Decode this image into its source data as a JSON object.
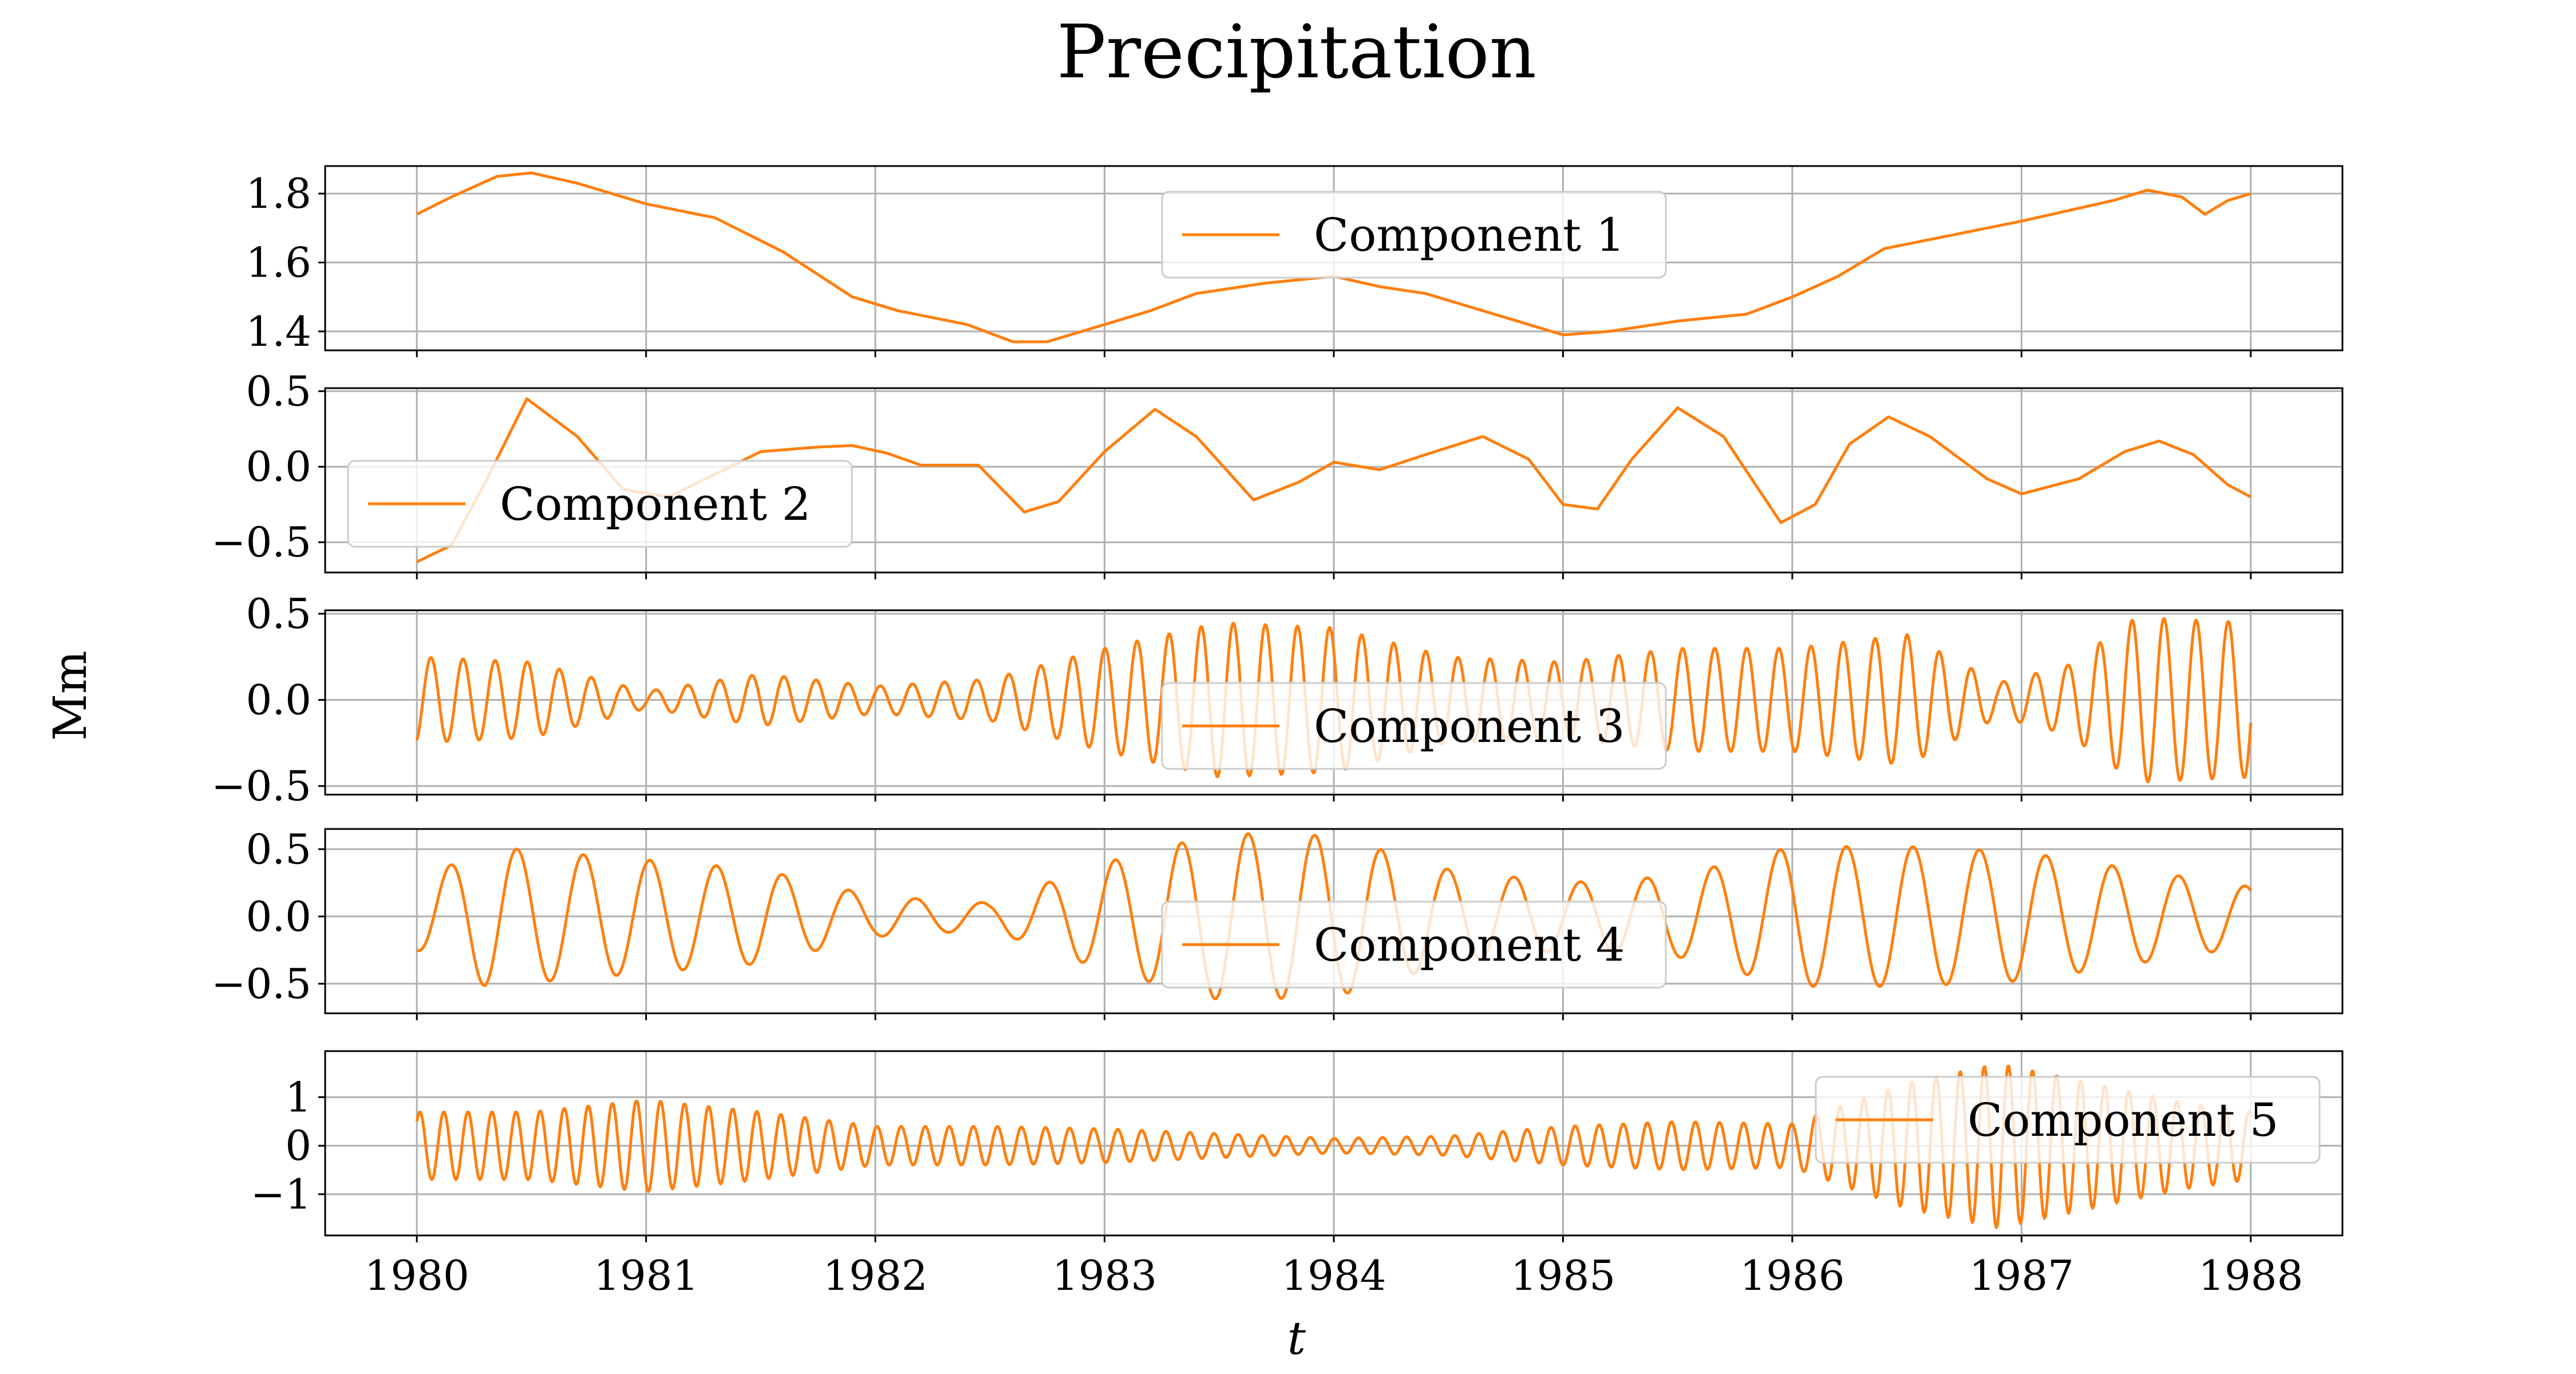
{
  "title": "Precipitation",
  "xlabel": "t",
  "ylabel": "Mm",
  "line_color": "#ff7f0e",
  "grid_color": "#b0b0b0",
  "chart_data": [
    {
      "type": "line",
      "series": [
        {
          "name": "Component 1"
        }
      ],
      "xlim": [
        1979.6,
        1988.4
      ],
      "ylim": [
        1.345,
        1.88
      ],
      "yticks": [
        1.4,
        1.6,
        1.8
      ],
      "ytick_labels": [
        "1.4",
        "1.6",
        "1.8"
      ],
      "legend_position": "upper center",
      "signal": {
        "knots": [
          [
            1980.0,
            1.74
          ],
          [
            1980.15,
            1.79
          ],
          [
            1980.35,
            1.85
          ],
          [
            1980.5,
            1.86
          ],
          [
            1980.7,
            1.83
          ],
          [
            1981.0,
            1.77
          ],
          [
            1981.3,
            1.73
          ],
          [
            1981.6,
            1.63
          ],
          [
            1981.9,
            1.5
          ],
          [
            1982.1,
            1.46
          ],
          [
            1982.4,
            1.42
          ],
          [
            1982.6,
            1.37
          ],
          [
            1982.75,
            1.37
          ],
          [
            1983.0,
            1.42
          ],
          [
            1983.2,
            1.46
          ],
          [
            1983.4,
            1.51
          ],
          [
            1983.7,
            1.54
          ],
          [
            1984.0,
            1.56
          ],
          [
            1984.2,
            1.53
          ],
          [
            1984.4,
            1.51
          ],
          [
            1984.7,
            1.45
          ],
          [
            1985.0,
            1.39
          ],
          [
            1985.2,
            1.4
          ],
          [
            1985.5,
            1.43
          ],
          [
            1985.8,
            1.45
          ],
          [
            1986.0,
            1.5
          ],
          [
            1986.2,
            1.56
          ],
          [
            1986.4,
            1.64
          ],
          [
            1986.7,
            1.68
          ],
          [
            1987.0,
            1.72
          ],
          [
            1987.4,
            1.78
          ],
          [
            1987.55,
            1.81
          ],
          [
            1987.7,
            1.79
          ],
          [
            1987.8,
            1.74
          ],
          [
            1987.9,
            1.78
          ],
          [
            1988.0,
            1.8
          ]
        ],
        "osc_amp": [
          [
            1980.0,
            0.0
          ],
          [
            1988.0,
            0.0
          ]
        ],
        "osc_period": [
          [
            1980.0,
            1.0
          ],
          [
            1988.0,
            1.0
          ]
        ],
        "phase": 0
      }
    },
    {
      "type": "line",
      "series": [
        {
          "name": "Component 2"
        }
      ],
      "xlim": [
        1979.6,
        1988.4
      ],
      "ylim": [
        -0.7,
        0.52
      ],
      "yticks": [
        -0.5,
        0.0,
        0.5
      ],
      "ytick_labels": [
        "−0.5",
        "0.0",
        "0.5"
      ],
      "legend_position": "lower left",
      "signal": {
        "knots": [
          [
            1980.0,
            -0.63
          ],
          [
            1980.15,
            -0.52
          ],
          [
            1980.3,
            -0.1
          ],
          [
            1980.48,
            0.45
          ],
          [
            1980.7,
            0.2
          ],
          [
            1980.9,
            -0.15
          ],
          [
            1981.1,
            -0.2
          ],
          [
            1981.3,
            -0.05
          ],
          [
            1981.5,
            0.1
          ],
          [
            1981.75,
            0.13
          ],
          [
            1981.9,
            0.14
          ],
          [
            1982.05,
            0.09
          ],
          [
            1982.2,
            0.01
          ],
          [
            1982.45,
            0.01
          ],
          [
            1982.65,
            -0.3
          ],
          [
            1982.8,
            -0.23
          ],
          [
            1983.0,
            0.1
          ],
          [
            1983.22,
            0.38
          ],
          [
            1983.4,
            0.2
          ],
          [
            1983.65,
            -0.22
          ],
          [
            1983.85,
            -0.1
          ],
          [
            1984.0,
            0.03
          ],
          [
            1984.2,
            -0.02
          ],
          [
            1984.4,
            0.08
          ],
          [
            1984.65,
            0.2
          ],
          [
            1984.85,
            0.05
          ],
          [
            1985.0,
            -0.25
          ],
          [
            1985.15,
            -0.28
          ],
          [
            1985.3,
            0.05
          ],
          [
            1985.5,
            0.39
          ],
          [
            1985.7,
            0.2
          ],
          [
            1985.95,
            -0.37
          ],
          [
            1986.1,
            -0.25
          ],
          [
            1986.25,
            0.15
          ],
          [
            1986.42,
            0.33
          ],
          [
            1986.6,
            0.2
          ],
          [
            1986.85,
            -0.08
          ],
          [
            1987.0,
            -0.18
          ],
          [
            1987.25,
            -0.08
          ],
          [
            1987.45,
            0.1
          ],
          [
            1987.6,
            0.17
          ],
          [
            1987.75,
            0.08
          ],
          [
            1987.9,
            -0.12
          ],
          [
            1988.0,
            -0.2
          ]
        ],
        "osc_amp": [
          [
            1980.0,
            0.0
          ],
          [
            1988.0,
            0.0
          ]
        ],
        "osc_period": [
          [
            1980.0,
            1.0
          ],
          [
            1988.0,
            1.0
          ]
        ],
        "phase": 0
      }
    },
    {
      "type": "line",
      "series": [
        {
          "name": "Component 3"
        }
      ],
      "xlim": [
        1979.6,
        1988.4
      ],
      "ylim": [
        -0.55,
        0.52
      ],
      "yticks": [
        -0.5,
        0.0,
        0.5
      ],
      "ytick_labels": [
        "−0.5",
        "0.0",
        "0.5"
      ],
      "legend_position": "lower center",
      "signal": {
        "knots": [
          [
            1980.0,
            0.0
          ],
          [
            1988.0,
            0.0
          ]
        ],
        "osc_amp": [
          [
            1980.0,
            0.25
          ],
          [
            1980.5,
            0.22
          ],
          [
            1981.0,
            0.05
          ],
          [
            1981.5,
            0.15
          ],
          [
            1982.0,
            0.08
          ],
          [
            1982.5,
            0.12
          ],
          [
            1983.0,
            0.3
          ],
          [
            1983.5,
            0.45
          ],
          [
            1984.0,
            0.42
          ],
          [
            1984.5,
            0.25
          ],
          [
            1985.0,
            0.22
          ],
          [
            1985.5,
            0.3
          ],
          [
            1986.0,
            0.3
          ],
          [
            1986.5,
            0.38
          ],
          [
            1986.9,
            0.1
          ],
          [
            1987.2,
            0.2
          ],
          [
            1987.5,
            0.48
          ],
          [
            1988.0,
            0.45
          ]
        ],
        "osc_period": [
          [
            1980.0,
            0.14
          ],
          [
            1988.0,
            0.14
          ]
        ],
        "phase": -1.2
      }
    },
    {
      "type": "line",
      "series": [
        {
          "name": "Component 4"
        }
      ],
      "xlim": [
        1979.6,
        1988.4
      ],
      "ylim": [
        -0.72,
        0.65
      ],
      "yticks": [
        -0.5,
        0.0,
        0.5
      ],
      "ytick_labels": [
        "−0.5",
        "0.0",
        "0.5"
      ],
      "legend_position": "lower center",
      "signal": {
        "knots": [
          [
            1980.0,
            0.0
          ],
          [
            1988.0,
            0.0
          ]
        ],
        "osc_amp": [
          [
            1980.0,
            0.25
          ],
          [
            1980.3,
            0.52
          ],
          [
            1981.0,
            0.42
          ],
          [
            1981.5,
            0.35
          ],
          [
            1982.0,
            0.15
          ],
          [
            1982.5,
            0.1
          ],
          [
            1983.0,
            0.4
          ],
          [
            1983.5,
            0.62
          ],
          [
            1984.0,
            0.6
          ],
          [
            1984.5,
            0.35
          ],
          [
            1985.0,
            0.25
          ],
          [
            1985.5,
            0.3
          ],
          [
            1986.0,
            0.52
          ],
          [
            1986.5,
            0.52
          ],
          [
            1987.0,
            0.48
          ],
          [
            1987.5,
            0.35
          ],
          [
            1988.0,
            0.22
          ]
        ],
        "osc_period": [
          [
            1980.0,
            0.29
          ],
          [
            1988.0,
            0.29
          ]
        ],
        "phase": -1.6
      }
    },
    {
      "type": "line",
      "series": [
        {
          "name": "Component 5"
        }
      ],
      "xlim": [
        1979.6,
        1988.4
      ],
      "ylim": [
        -1.85,
        1.95
      ],
      "yticks": [
        -1,
        0,
        1
      ],
      "ytick_labels": [
        "−1",
        "0",
        "1"
      ],
      "legend_position": "upper right",
      "signal": {
        "knots": [
          [
            1980.0,
            0.0
          ],
          [
            1988.0,
            0.0
          ]
        ],
        "osc_amp": [
          [
            1980.0,
            0.7
          ],
          [
            1980.5,
            0.7
          ],
          [
            1981.0,
            0.95
          ],
          [
            1981.5,
            0.7
          ],
          [
            1982.0,
            0.4
          ],
          [
            1982.5,
            0.4
          ],
          [
            1983.0,
            0.35
          ],
          [
            1983.5,
            0.25
          ],
          [
            1984.0,
            0.15
          ],
          [
            1984.5,
            0.2
          ],
          [
            1985.0,
            0.4
          ],
          [
            1985.5,
            0.5
          ],
          [
            1986.0,
            0.45
          ],
          [
            1986.5,
            1.3
          ],
          [
            1986.9,
            1.7
          ],
          [
            1987.3,
            1.3
          ],
          [
            1987.7,
            0.9
          ],
          [
            1988.0,
            0.7
          ]
        ],
        "osc_period": [
          [
            1980.0,
            0.105
          ],
          [
            1988.0,
            0.105
          ]
        ],
        "phase": 0.8
      }
    }
  ],
  "xticks": [
    1980,
    1981,
    1982,
    1983,
    1984,
    1985,
    1986,
    1987,
    1988
  ],
  "xtick_labels": [
    "1980",
    "1981",
    "1982",
    "1983",
    "1984",
    "1985",
    "1986",
    "1987",
    "1988"
  ]
}
